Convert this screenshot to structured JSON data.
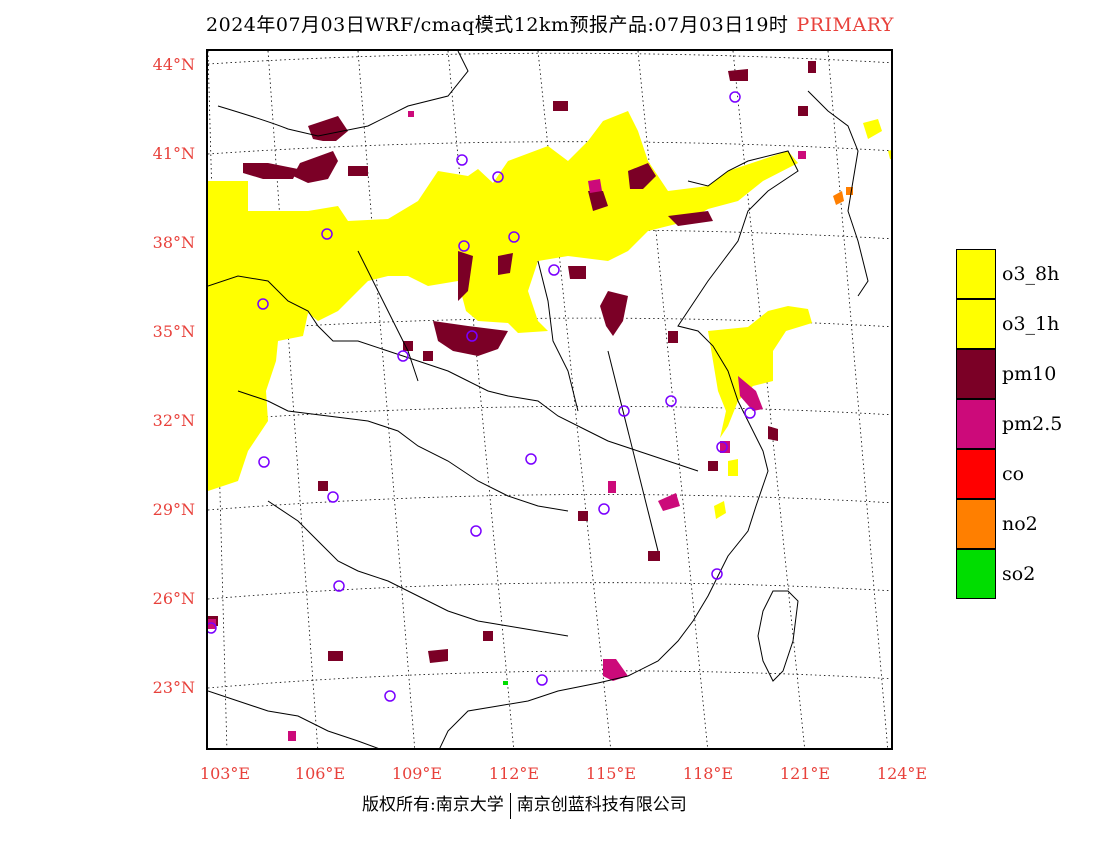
{
  "title": "2024年07月03日WRF/cmaq模式12km预报产品:07月03日19时",
  "badge": "PRIMARY",
  "lat_labels": [
    "44°N",
    "41°N",
    "38°N",
    "35°N",
    "32°N",
    "29°N",
    "26°N",
    "23°N"
  ],
  "lon_labels": [
    "103°E",
    "106°E",
    "109°E",
    "112°E",
    "115°E",
    "118°E",
    "121°E",
    "124°E"
  ],
  "legend": [
    {
      "label": "o3_8h",
      "color": "#ffff00"
    },
    {
      "label": "o3_1h",
      "color": "#ffff00"
    },
    {
      "label": "pm10",
      "color": "#7b0026"
    },
    {
      "label": "pm2.5",
      "color": "#cc0a7a"
    },
    {
      "label": "co",
      "color": "#ff0000"
    },
    {
      "label": "no2",
      "color": "#ff7f00"
    },
    {
      "label": "so2",
      "color": "#00dd00"
    }
  ],
  "copyright": {
    "left": "版权所有:南京大学",
    "right": "南京创蓝科技有限公司"
  }
}
